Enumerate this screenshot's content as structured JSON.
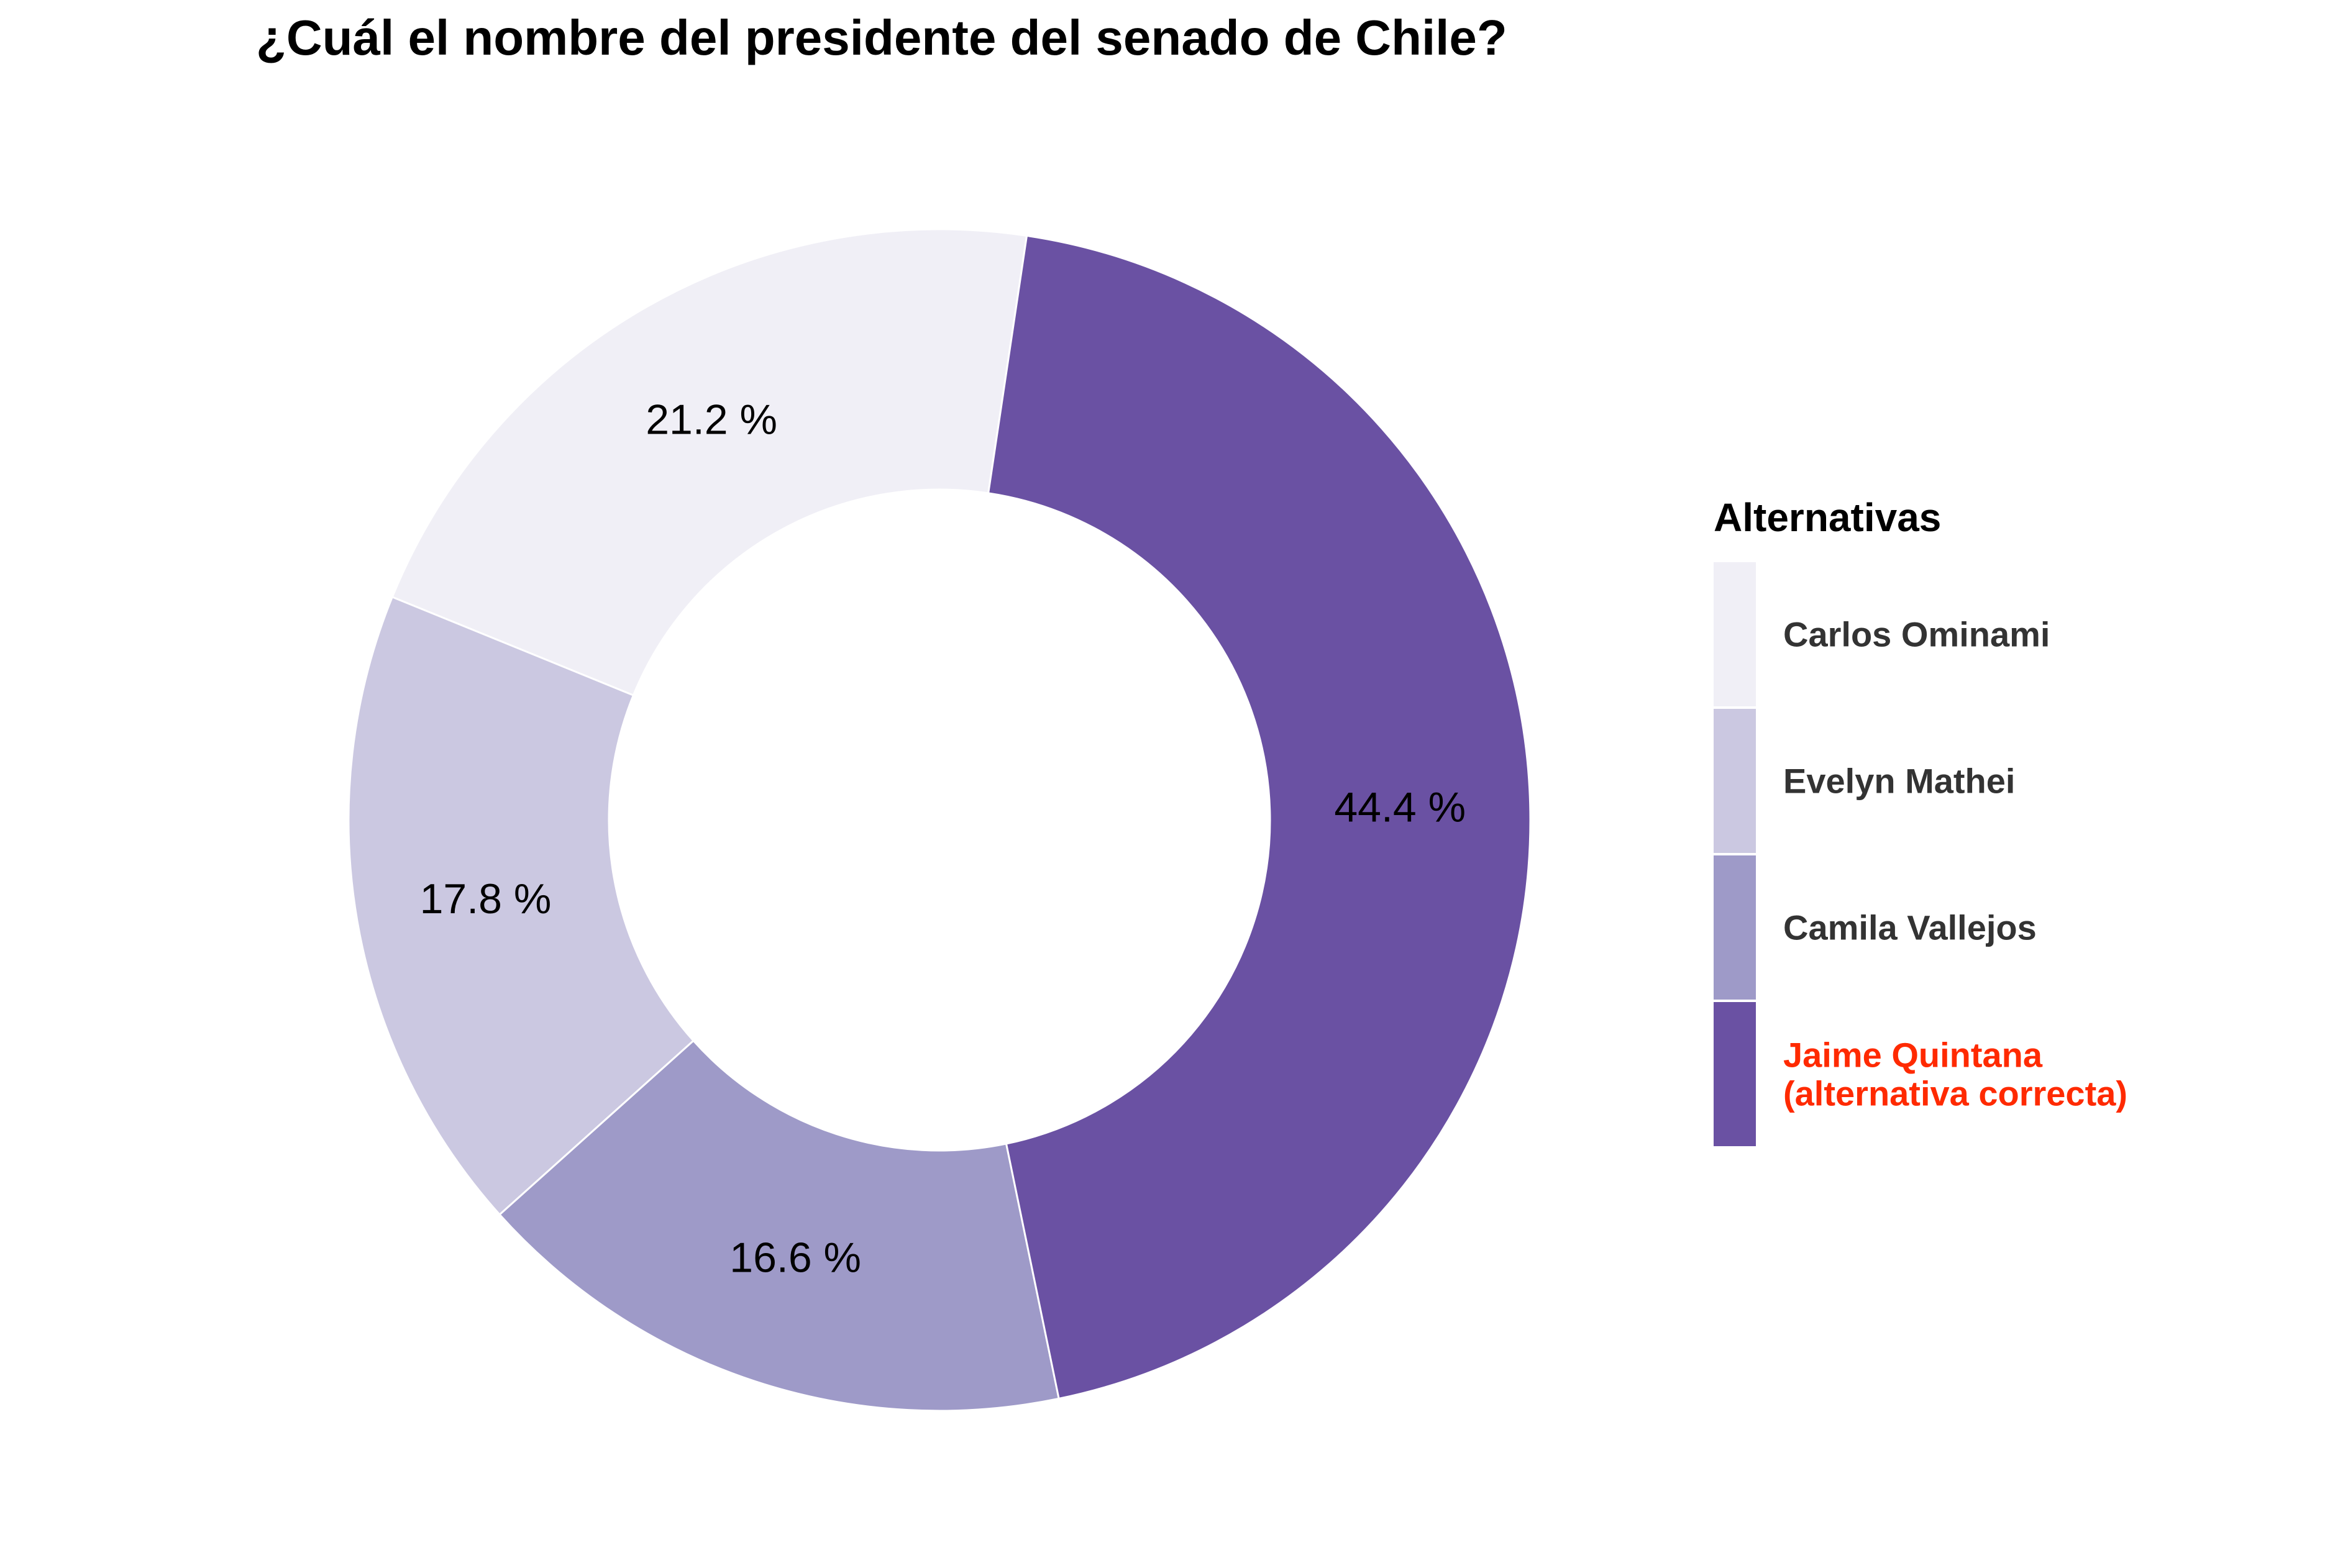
{
  "chart_data": {
    "type": "pie",
    "style": "donut",
    "title": "¿Cuál el nombre del presidente del senado de Chile?",
    "value_suffix": " %",
    "legend": {
      "title": "Alternativas",
      "position": "right"
    },
    "slices": [
      {
        "label": "Carlos Ominami",
        "value": 21.2,
        "color": "#f0eff6",
        "label_color": "#333333"
      },
      {
        "label": "Evelyn Mathei",
        "value": 17.8,
        "color": "#cbc8e1",
        "label_color": "#333333"
      },
      {
        "label": "Camila Vallejos",
        "value": 16.6,
        "color": "#9e9ac8",
        "label_color": "#333333"
      },
      {
        "label": "Jaime Quintana\n(alternativa correcta)",
        "value": 44.4,
        "color": "#6a51a3",
        "label_color": "#ff2a00"
      }
    ]
  }
}
